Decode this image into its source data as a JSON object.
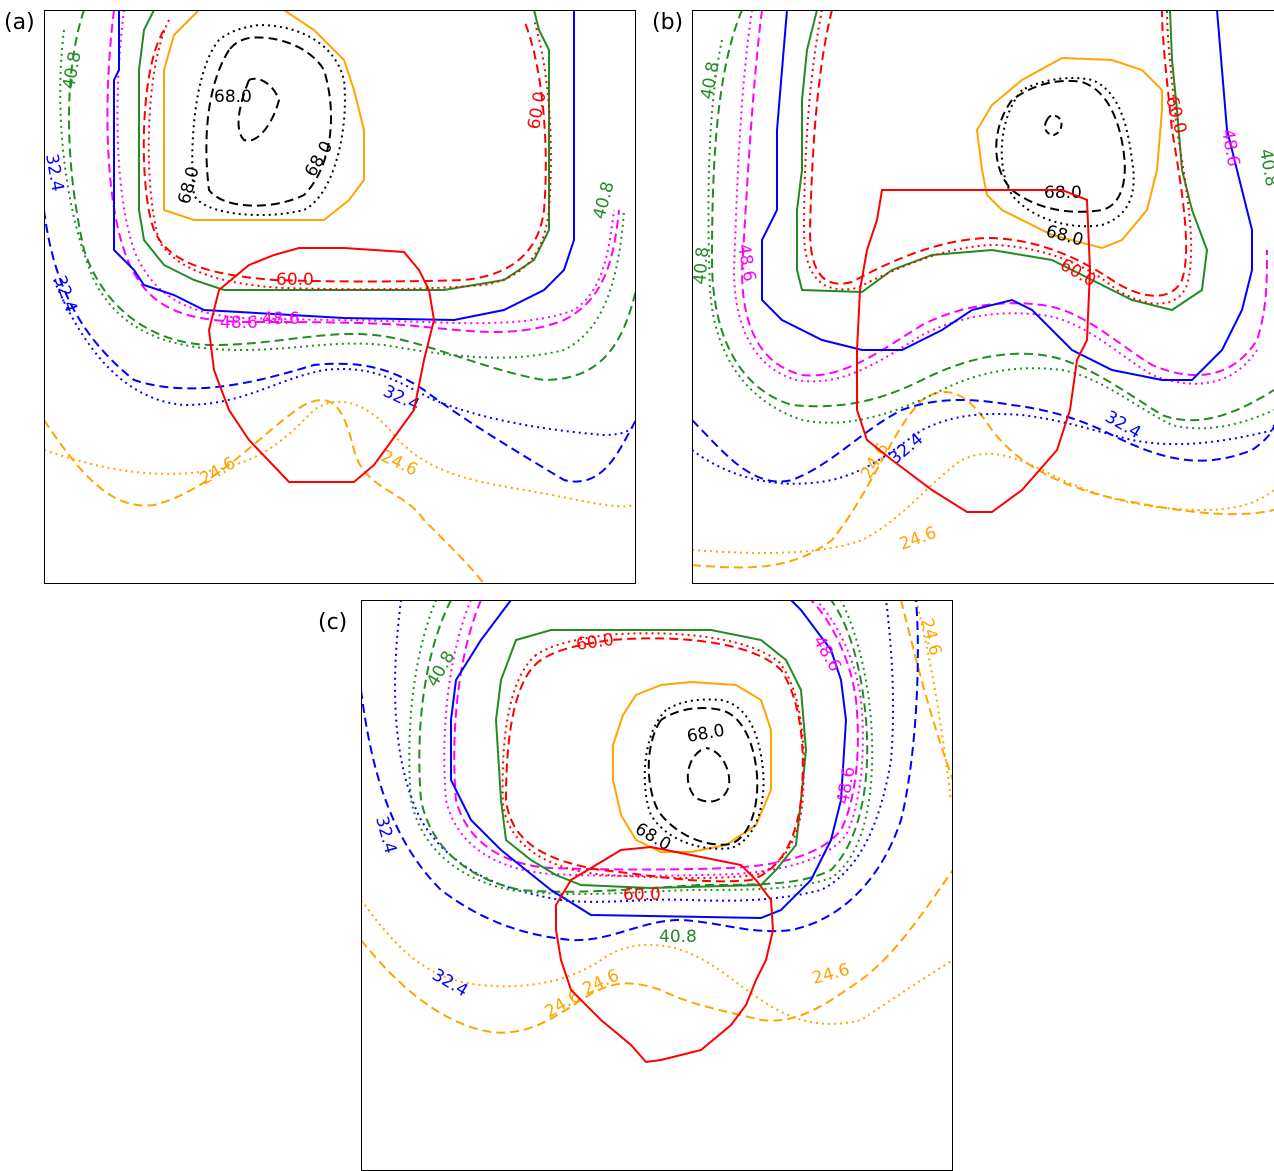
{
  "chart_data": [
    {
      "panel": "(a)",
      "type": "contour",
      "labels": [
        {
          "text": "68.0",
          "color": "#000000"
        },
        {
          "text": "68.0",
          "color": "#000000"
        },
        {
          "text": "68.0",
          "color": "#000000"
        },
        {
          "text": "60.0",
          "color": "#ff0000"
        },
        {
          "text": "60.0",
          "color": "#ff0000"
        },
        {
          "text": "48.6",
          "color": "#ff00ff"
        },
        {
          "text": "48.6",
          "color": "#ff00ff"
        },
        {
          "text": "40.8",
          "color": "#228b22"
        },
        {
          "text": "40.8",
          "color": "#228b22"
        },
        {
          "text": "32.4",
          "color": "#0000ff"
        },
        {
          "text": "32.4",
          "color": "#0000ff"
        },
        {
          "text": "32.4",
          "color": "#0000ff"
        },
        {
          "text": "24.6",
          "color": "#ffa500"
        },
        {
          "text": "24.6",
          "color": "#ffa500"
        }
      ]
    },
    {
      "panel": "(b)",
      "type": "contour",
      "labels": [
        {
          "text": "68.0",
          "color": "#000000"
        },
        {
          "text": "68.0",
          "color": "#000000"
        },
        {
          "text": "60.0",
          "color": "#ff0000"
        },
        {
          "text": "60.0",
          "color": "#ff0000"
        },
        {
          "text": "48.6",
          "color": "#ff00ff"
        },
        {
          "text": "48.6",
          "color": "#ff00ff"
        },
        {
          "text": "40.8",
          "color": "#228b22"
        },
        {
          "text": "40.8",
          "color": "#228b22"
        },
        {
          "text": "40.8",
          "color": "#228b22"
        },
        {
          "text": "32.4",
          "color": "#0000ff"
        },
        {
          "text": "32.4",
          "color": "#0000ff"
        },
        {
          "text": "24.6",
          "color": "#ffa500"
        },
        {
          "text": "24.6",
          "color": "#ffa500"
        }
      ]
    },
    {
      "panel": "(c)",
      "type": "contour",
      "labels": [
        {
          "text": "68.0",
          "color": "#000000"
        },
        {
          "text": "68.0",
          "color": "#000000"
        },
        {
          "text": "60.0",
          "color": "#ff0000"
        },
        {
          "text": "60.0",
          "color": "#ff0000"
        },
        {
          "text": "48.6",
          "color": "#ff00ff"
        },
        {
          "text": "48.6",
          "color": "#ff00ff"
        },
        {
          "text": "40.8",
          "color": "#228b22"
        },
        {
          "text": "40.8",
          "color": "#228b22"
        },
        {
          "text": "32.4",
          "color": "#0000ff"
        },
        {
          "text": "32.4",
          "color": "#0000ff"
        },
        {
          "text": "24.6",
          "color": "#ffa500"
        },
        {
          "text": "24.6",
          "color": "#ffa500"
        },
        {
          "text": "24.6",
          "color": "#ffa500"
        },
        {
          "text": "24.6",
          "color": "#ffa500"
        }
      ]
    }
  ]
}
